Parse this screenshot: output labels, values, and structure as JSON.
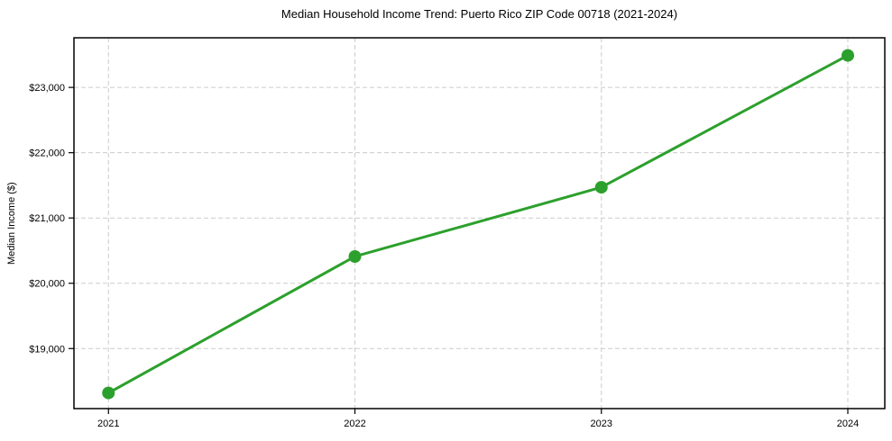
{
  "chart_data": {
    "type": "line",
    "title": "Median Household Income Trend: Puerto Rico ZIP Code 00718 (2021-2024)",
    "xlabel": "",
    "ylabel": "Median Income ($)",
    "x": [
      2021,
      2022,
      2023,
      2024
    ],
    "series": [
      {
        "name": "Median Household Income",
        "values": [
          18320,
          20410,
          21470,
          23490
        ]
      }
    ],
    "xticks": [
      {
        "value": 2021,
        "label": "2021"
      },
      {
        "value": 2022,
        "label": "2022"
      },
      {
        "value": 2023,
        "label": "2023"
      },
      {
        "value": 2024,
        "label": "2024"
      }
    ],
    "yticks": [
      {
        "value": 19000,
        "label": "$19,000"
      },
      {
        "value": 20000,
        "label": "$20,000"
      },
      {
        "value": 21000,
        "label": "$21,000"
      },
      {
        "value": 22000,
        "label": "$22,000"
      },
      {
        "value": 23000,
        "label": "$23,000"
      }
    ],
    "xlim": [
      2020.86,
      2024.15
    ],
    "ylim": [
      18080,
      23760
    ],
    "grid": true,
    "grid_style": "dashed",
    "legend": "none",
    "colors": {
      "line": "#2ca02c",
      "marker": "#2ca02c",
      "grid": "#cccccc",
      "axis": "#000000",
      "text": "#000000",
      "background": "#ffffff"
    }
  }
}
